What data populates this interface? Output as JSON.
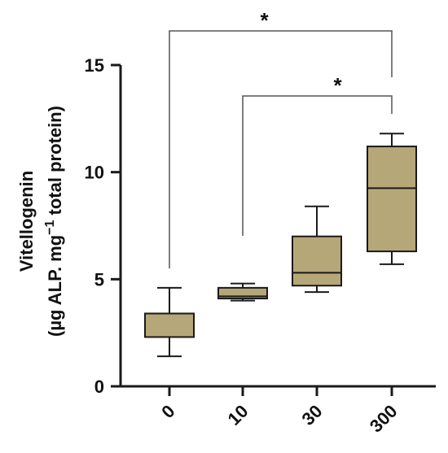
{
  "chart_data": {
    "type": "boxplot",
    "title": "",
    "xlabel": "",
    "ylabel_line1": "Vitellogenin",
    "ylabel_line2_prefix": "(µg ALP. mg",
    "ylabel_line2_sup": "−1",
    "ylabel_line2_suffix": " total protein)",
    "ylim": [
      0,
      15
    ],
    "yticks": [
      0,
      5,
      10,
      15
    ],
    "ytick_labels": [
      "0",
      "5",
      "10",
      "15"
    ],
    "categories": [
      "0",
      "10",
      "30",
      "300"
    ],
    "box_color": "#b5a777",
    "line_color": "#1a1a1a",
    "boxes": [
      {
        "category": "0",
        "min": 1.4,
        "q1": 2.3,
        "median": 3.4,
        "q3": 3.4,
        "max": 4.6
      },
      {
        "category": "10",
        "min": 4.0,
        "q1": 4.1,
        "median": 4.2,
        "q3": 4.6,
        "max": 4.8
      },
      {
        "category": "30",
        "min": 4.4,
        "q1": 4.7,
        "median": 5.3,
        "q3": 7.0,
        "max": 8.4
      },
      {
        "category": "300",
        "min": 5.7,
        "q1": 6.3,
        "median": 9.25,
        "q3": 11.2,
        "max": 11.8
      }
    ],
    "significance": [
      {
        "from": "0",
        "to": "300",
        "label": "*"
      },
      {
        "from": "10",
        "to": "300",
        "label": "*"
      }
    ]
  }
}
